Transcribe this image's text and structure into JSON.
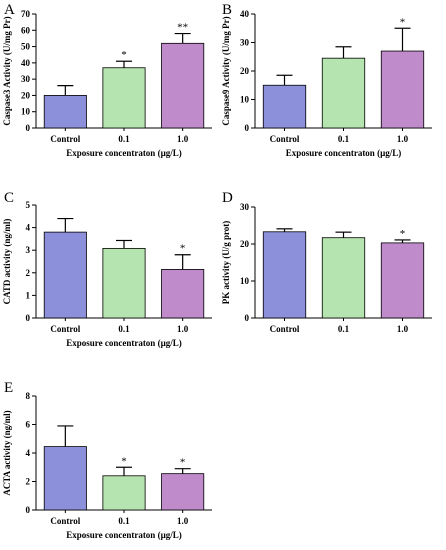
{
  "colors": {
    "Control": "#8c8fd9",
    "0.1": "#b6e4b0",
    "1.0": "#bf8bcb"
  },
  "chart_data": [
    {
      "panel": "A",
      "type": "bar",
      "categories": [
        "Control",
        "0.1",
        "1.0"
      ],
      "values": [
        20,
        37,
        52
      ],
      "errors": [
        6,
        4,
        6
      ],
      "annotations": [
        "",
        "*",
        "**"
      ],
      "ylabel": "Caspase3 Activity (U/mg Pr)",
      "xlabel": "Exposure concentraton (µg/L)",
      "ylim": [
        0,
        70
      ],
      "yticks": [
        "0",
        "10",
        "20",
        "30",
        "40",
        "50",
        "60",
        "70"
      ]
    },
    {
      "panel": "B",
      "type": "bar",
      "categories": [
        "Control",
        "0.1",
        "1.0"
      ],
      "values": [
        15,
        24.5,
        27
      ],
      "errors": [
        3.5,
        4,
        8
      ],
      "annotations": [
        "",
        "",
        "*"
      ],
      "ylabel": "Caspase9 Activity (U/mg Pr)",
      "xlabel": "Exposure concentraton (µg/L)",
      "ylim": [
        0,
        40
      ],
      "yticks": [
        "0",
        "10",
        "20",
        "30",
        "40"
      ]
    },
    {
      "panel": "C",
      "type": "bar",
      "categories": [
        "Control",
        "0.1",
        "1.0"
      ],
      "values": [
        3.8,
        3.08,
        2.15
      ],
      "errors": [
        0.6,
        0.35,
        0.65
      ],
      "annotations": [
        "",
        "",
        "*"
      ],
      "ylabel": "CATD activity (ng/ml)",
      "xlabel": "Exposure concentraton (µg/L)",
      "ylim": [
        0,
        5
      ],
      "yticks": [
        "0",
        "1",
        "2",
        "3",
        "4",
        "5"
      ]
    },
    {
      "panel": "D",
      "type": "bar",
      "categories": [
        "Control",
        "0.1",
        "1.0"
      ],
      "values": [
        23.3,
        21.7,
        20.3
      ],
      "errors": [
        0.8,
        1.5,
        0.8
      ],
      "annotations": [
        "",
        "",
        "*"
      ],
      "ylabel": "PK activity (U/g prot)",
      "xlabel": "",
      "ylim": [
        0,
        30
      ],
      "yticks": [
        "0",
        "10",
        "20",
        "30"
      ]
    },
    {
      "panel": "E",
      "type": "bar",
      "categories": [
        "Control",
        "0.1",
        "1.0"
      ],
      "values": [
        4.45,
        2.4,
        2.55
      ],
      "errors": [
        1.45,
        0.6,
        0.35
      ],
      "annotations": [
        "",
        "*",
        "*"
      ],
      "ylabel": "ACTA activity (ng/ml)",
      "xlabel": "Exposure concentraton (µg/L)",
      "ylim": [
        0,
        8
      ],
      "yticks": [
        "0",
        "2",
        "4",
        "6",
        "8"
      ]
    }
  ]
}
